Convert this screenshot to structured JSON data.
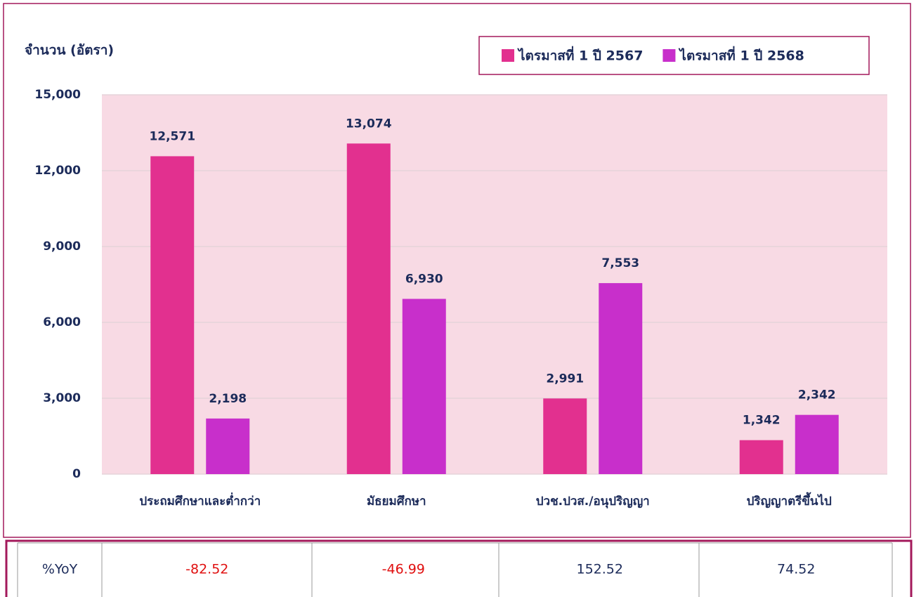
{
  "chart_data": {
    "type": "bar",
    "y_label": "จำนวน (อัตรา)",
    "categories": [
      "ประถมศึกษาและต่ำกว่า",
      "มัธยมศึกษา",
      "ปวช.ปวส./อนุปริญญา",
      "ปริญญาตรีขึ้นไป"
    ],
    "series": [
      {
        "name": "ไตรมาสที่ 1 ปี 2567",
        "color": "#e2308f",
        "values": [
          12571,
          13074,
          2991,
          1342
        ],
        "value_labels": [
          "12,571",
          "13,074",
          "2,991",
          "1,342"
        ]
      },
      {
        "name": "ไตรมาสที่ 1 ปี 2568",
        "color": "#c82fcb",
        "values": [
          2198,
          6930,
          7553,
          2342
        ],
        "value_labels": [
          "2,198",
          "6,930",
          "7,553",
          "2,342"
        ]
      }
    ],
    "ylim": [
      0,
      15000
    ],
    "yticks": [
      0,
      {
        "value": 3000,
        "label": "3,000"
      },
      {
        "value": 6000,
        "label": "6,000"
      },
      {
        "value": 9000,
        "label": "9,000"
      },
      {
        "value": 12000,
        "label": "12,000"
      },
      {
        "value": 15000,
        "label": "15,000"
      }
    ],
    "grid": true,
    "legend": "top-right"
  },
  "table": {
    "header": "%YoY",
    "values": [
      -82.52,
      -46.99,
      152.52,
      74.52
    ],
    "negative_color": "#e01010"
  }
}
